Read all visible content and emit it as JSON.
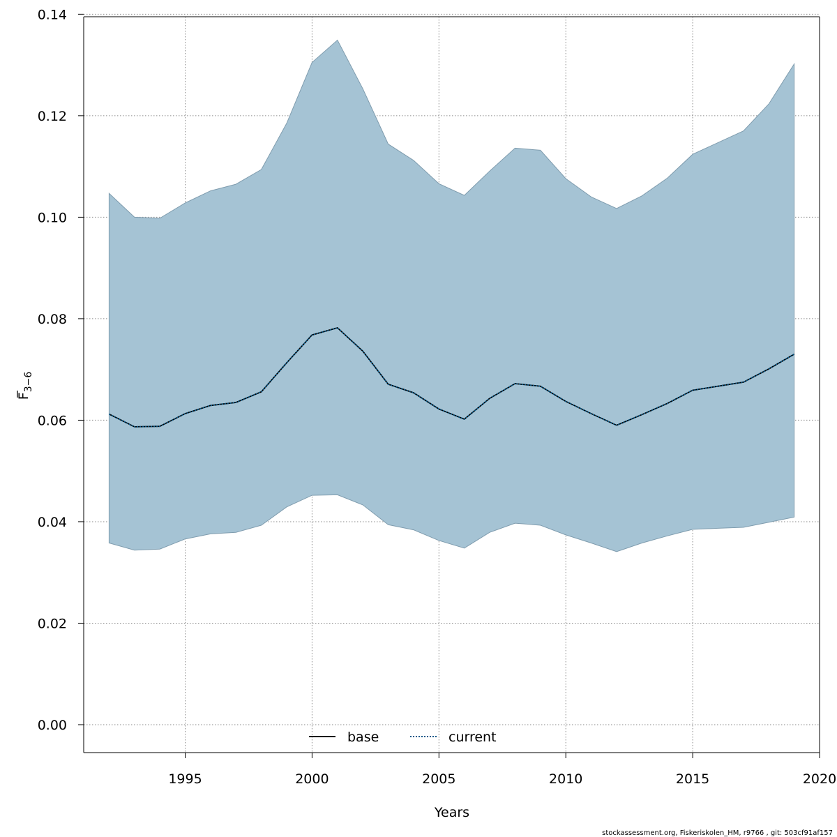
{
  "chart_data": {
    "type": "area",
    "xlabel": "Years",
    "ylabel_main": "F",
    "ylabel_sub": "3−6",
    "x_ticks": [
      "1995",
      "2000",
      "2005",
      "2010",
      "2015",
      "2020"
    ],
    "y_ticks": [
      "0.00",
      "0.02",
      "0.04",
      "0.06",
      "0.08",
      "0.10",
      "0.12",
      "0.14"
    ],
    "xlim": [
      1991,
      2020
    ],
    "ylim": [
      -0.0055,
      0.1395
    ],
    "grid": true,
    "legend_placement": "bottom-center",
    "x": [
      1992,
      1993,
      1994,
      1995,
      1996,
      1997,
      1998,
      1999,
      2000,
      2001,
      2002,
      2003,
      2004,
      2005,
      2006,
      2007,
      2008,
      2009,
      2010,
      2011,
      2012,
      2013,
      2014,
      2015,
      2016,
      2017,
      2018,
      2019
    ],
    "series": [
      {
        "name": "base",
        "style": "solid",
        "color": "#000000",
        "values": [
          0.0612,
          0.0587,
          0.0588,
          0.0613,
          0.0629,
          0.0635,
          0.0656,
          0.0713,
          0.0768,
          0.0782,
          0.0736,
          0.0671,
          0.0654,
          0.0622,
          0.0602,
          0.0643,
          0.0672,
          0.0667,
          0.0637,
          0.0613,
          0.059,
          0.0611,
          0.0633,
          0.0659,
          0.0667,
          0.0675,
          0.0701,
          0.073
        ]
      },
      {
        "name": "current",
        "style": "dotted",
        "color": "#0a5a8a",
        "values": [
          0.0612,
          0.0587,
          0.0588,
          0.0613,
          0.0629,
          0.0635,
          0.0656,
          0.0713,
          0.0768,
          0.0782,
          0.0736,
          0.0671,
          0.0654,
          0.0622,
          0.0602,
          0.0643,
          0.0672,
          0.0667,
          0.0637,
          0.0613,
          0.059,
          0.0611,
          0.0633,
          0.0659,
          0.0667,
          0.0675,
          0.0701,
          0.073
        ]
      }
    ],
    "confidence_band": {
      "upper": [
        0.1047,
        0.1,
        0.0998,
        0.1028,
        0.1052,
        0.1065,
        0.1094,
        0.1185,
        0.1305,
        0.1349,
        0.1253,
        0.1144,
        0.1112,
        0.1066,
        0.1043,
        0.1091,
        0.1136,
        0.1132,
        0.1076,
        0.104,
        0.1017,
        0.1042,
        0.1077,
        0.1124,
        0.1147,
        0.117,
        0.1223,
        0.1302
      ],
      "lower": [
        0.0358,
        0.0344,
        0.0346,
        0.0366,
        0.0376,
        0.0379,
        0.0393,
        0.0429,
        0.0452,
        0.0453,
        0.0433,
        0.0394,
        0.0384,
        0.0363,
        0.0348,
        0.0379,
        0.0397,
        0.0393,
        0.0374,
        0.0358,
        0.0341,
        0.0358,
        0.0372,
        0.0385,
        0.0387,
        0.0389,
        0.0399,
        0.0409
      ],
      "color": "#a5c3d4"
    }
  },
  "legend": {
    "base_label": "base",
    "current_label": "current"
  },
  "footer": "stockassessment.org, Fiskeriskolen_HM, r9766 , git: 503cf91af157"
}
